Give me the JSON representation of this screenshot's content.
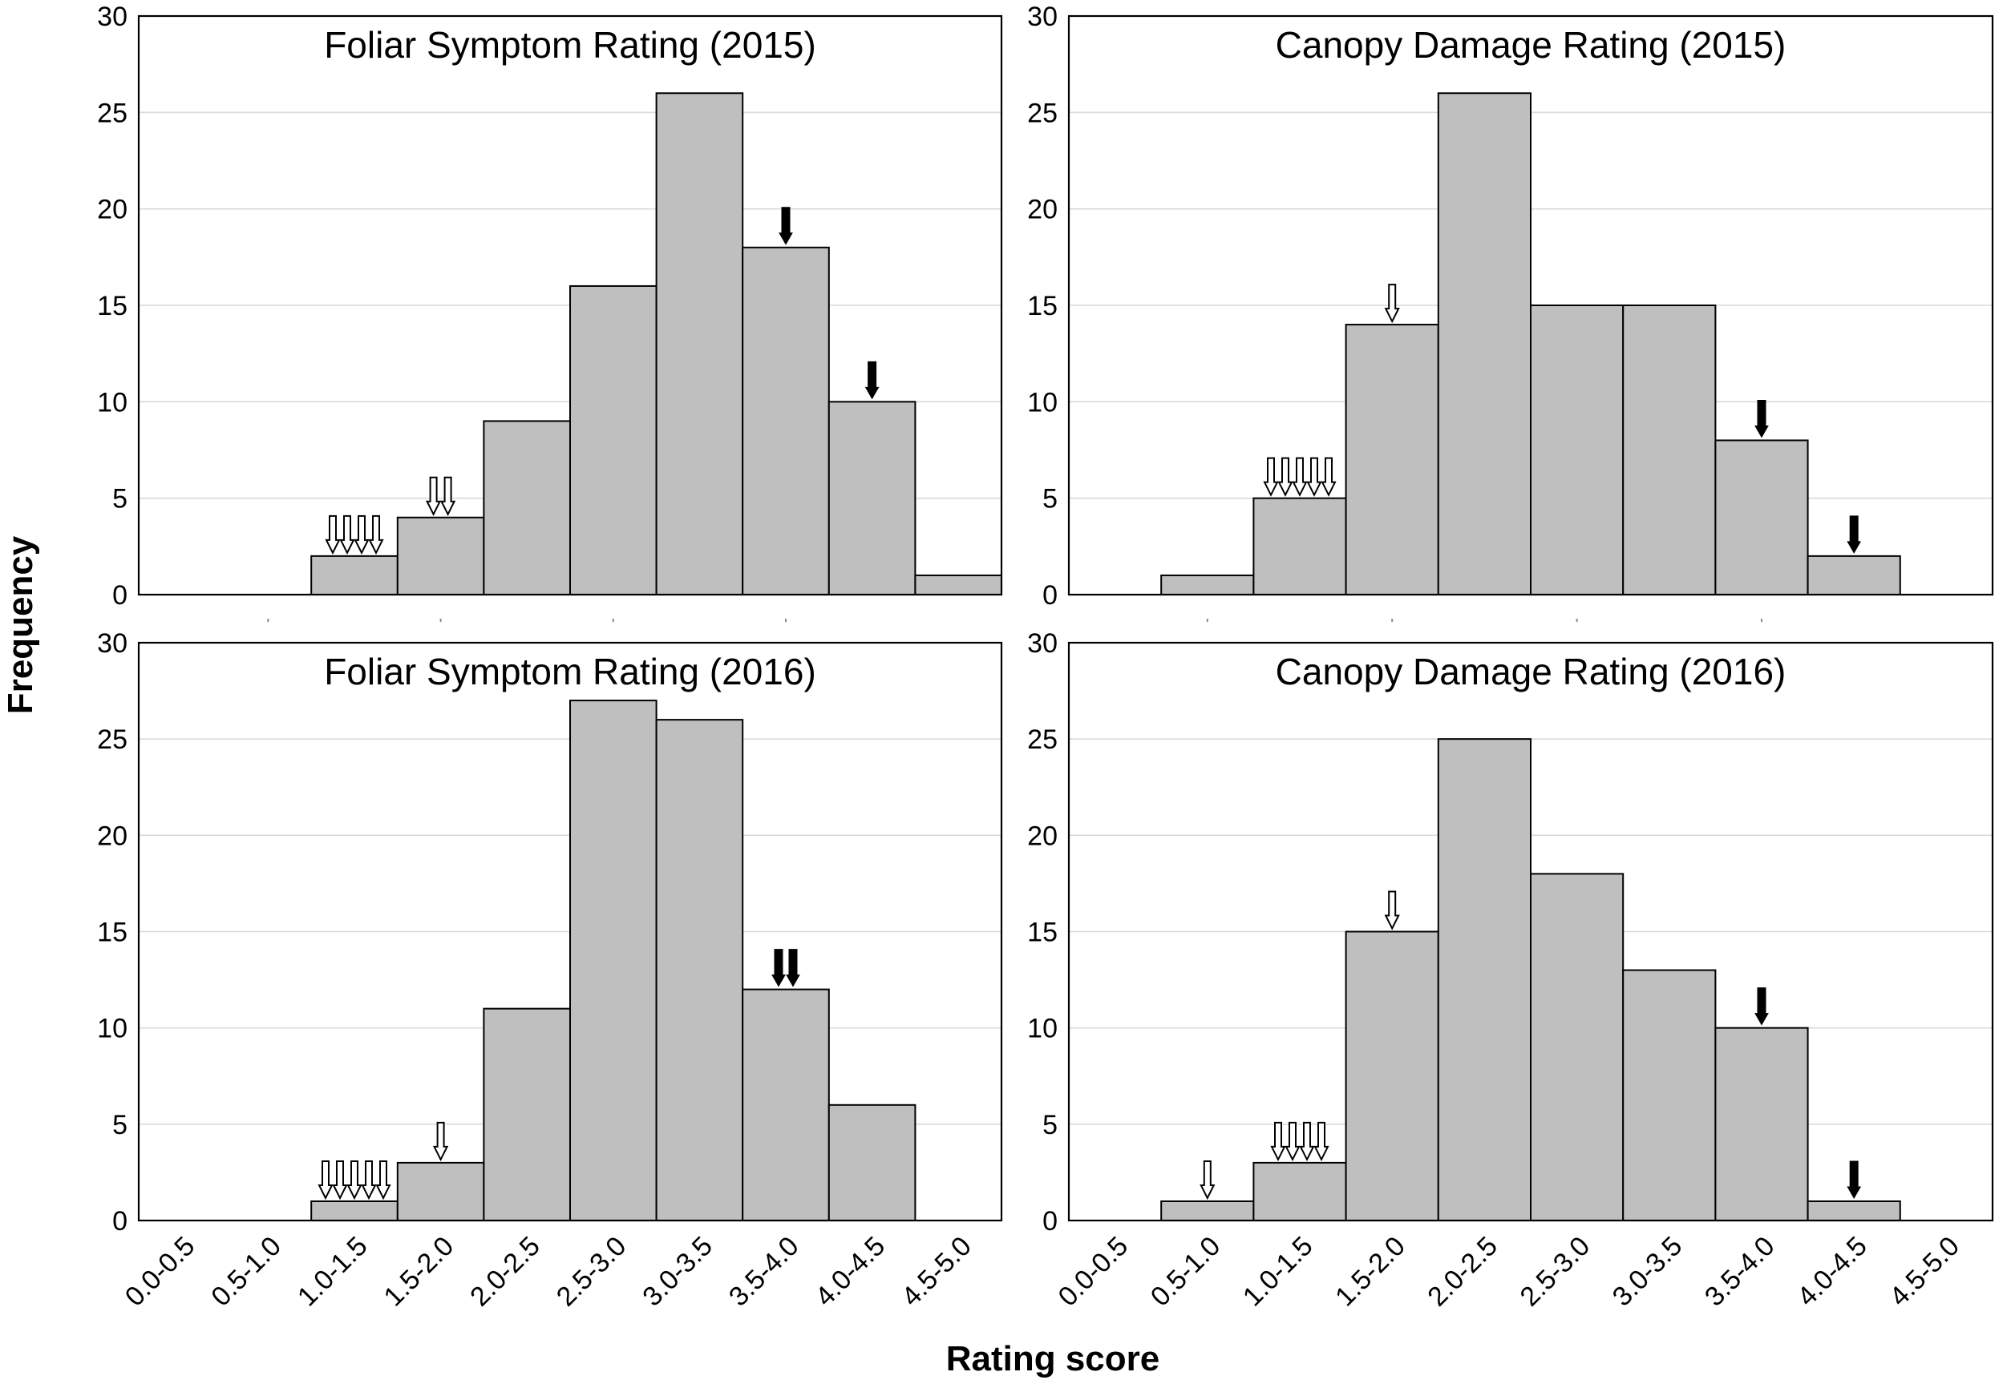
{
  "figure": {
    "ylabel": "Frequency",
    "xlabel": "Rating score"
  },
  "chart_data": [
    {
      "type": "bar",
      "title": "Foliar Symptom Rating (2015)",
      "categories": [
        "0.0-0.5",
        "0.5-1.0",
        "1.0-1.5",
        "1.5-2.0",
        "2.0-2.5",
        "2.5-3.0",
        "3.0-3.5",
        "3.5-4.0",
        "4.0-4.5",
        "4.5-5.0"
      ],
      "values": [
        0,
        0,
        2,
        4,
        9,
        16,
        26,
        18,
        10,
        1
      ],
      "ylim": [
        0,
        30
      ],
      "yticks": [
        0,
        5,
        10,
        15,
        20,
        25,
        30
      ],
      "arrows": [
        {
          "bin": 2,
          "count": 4,
          "style": "open"
        },
        {
          "bin": 3,
          "count": 2,
          "style": "open"
        },
        {
          "bin": 7,
          "count": 1,
          "style": "solid"
        },
        {
          "bin": 8,
          "count": 1,
          "style": "solid"
        }
      ]
    },
    {
      "type": "bar",
      "title": "Canopy Damage Rating (2015)",
      "categories": [
        "0.0-0.5",
        "0.5-1.0",
        "1.0-1.5",
        "1.5-2.0",
        "2.0-2.5",
        "2.5-3.0",
        "3.0-3.5",
        "3.5-4.0",
        "4.0-4.5",
        "4.5-5.0"
      ],
      "values": [
        0,
        1,
        5,
        14,
        26,
        15,
        15,
        8,
        2,
        0
      ],
      "ylim": [
        0,
        30
      ],
      "yticks": [
        0,
        5,
        10,
        15,
        20,
        25,
        30
      ],
      "arrows": [
        {
          "bin": 2,
          "count": 5,
          "style": "open"
        },
        {
          "bin": 3,
          "count": 1,
          "style": "open"
        },
        {
          "bin": 7,
          "count": 1,
          "style": "solid"
        },
        {
          "bin": 8,
          "count": 1,
          "style": "solid"
        }
      ]
    },
    {
      "type": "bar",
      "title": "Foliar Symptom Rating (2016)",
      "categories": [
        "0.0-0.5",
        "0.5-1.0",
        "1.0-1.5",
        "1.5-2.0",
        "2.0-2.5",
        "2.5-3.0",
        "3.0-3.5",
        "3.5-4.0",
        "4.0-4.5",
        "4.5-5.0"
      ],
      "values": [
        0,
        0,
        1,
        3,
        11,
        27,
        26,
        12,
        6,
        0
      ],
      "ylim": [
        0,
        30
      ],
      "yticks": [
        0,
        5,
        10,
        15,
        20,
        25,
        30
      ],
      "arrows": [
        {
          "bin": 2,
          "count": 5,
          "style": "open"
        },
        {
          "bin": 3,
          "count": 1,
          "style": "open"
        },
        {
          "bin": 7,
          "count": 2,
          "style": "solid"
        }
      ]
    },
    {
      "type": "bar",
      "title": "Canopy Damage Rating (2016)",
      "categories": [
        "0.0-0.5",
        "0.5-1.0",
        "1.0-1.5",
        "1.5-2.0",
        "2.0-2.5",
        "2.5-3.0",
        "3.0-3.5",
        "3.5-4.0",
        "4.0-4.5",
        "4.5-5.0"
      ],
      "values": [
        0,
        1,
        3,
        15,
        25,
        18,
        13,
        10,
        1,
        0
      ],
      "ylim": [
        0,
        30
      ],
      "yticks": [
        0,
        5,
        10,
        15,
        20,
        25,
        30
      ],
      "arrows": [
        {
          "bin": 1,
          "count": 1,
          "style": "open"
        },
        {
          "bin": 2,
          "count": 4,
          "style": "open"
        },
        {
          "bin": 3,
          "count": 1,
          "style": "open"
        },
        {
          "bin": 7,
          "count": 1,
          "style": "solid"
        },
        {
          "bin": 8,
          "count": 1,
          "style": "solid"
        }
      ]
    }
  ]
}
